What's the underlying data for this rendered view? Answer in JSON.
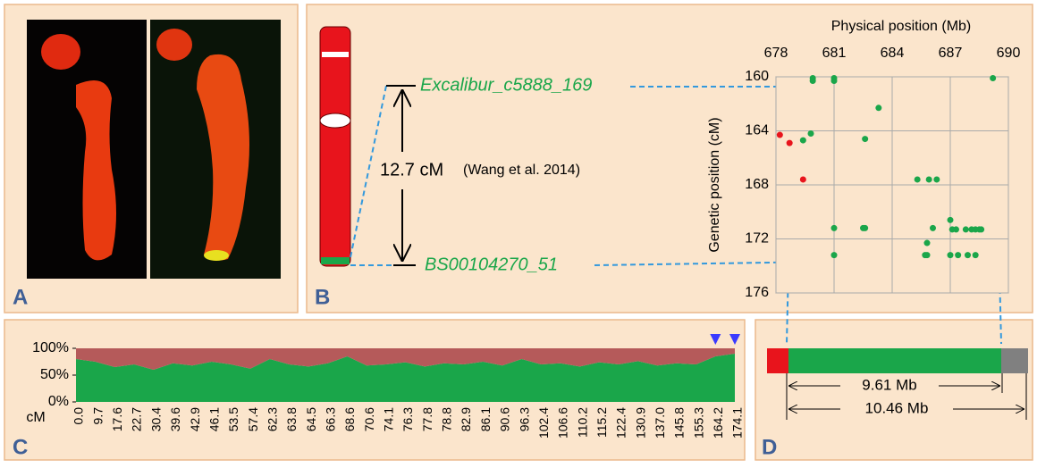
{
  "panel_labels": [
    "A",
    "B",
    "C",
    "D"
  ],
  "chromosome": {
    "marker_top": "Excalibur_c5888_169",
    "marker_bottom": "BS00104270_51",
    "distance": "12.7 cM",
    "citation": "(Wang et al. 2014)"
  },
  "physical_map": {
    "span_inner": "9.61 Mb",
    "span_outer": "10.46 Mb"
  },
  "chart_data": [
    {
      "type": "scatter",
      "x_label": "Physical position (Mb)",
      "y_label": "Genetic position (cM)",
      "xlim": [
        678,
        690
      ],
      "ylim": [
        160,
        176
      ],
      "y_inverted": true,
      "x_axis_top": true,
      "xticks": [
        678,
        681,
        684,
        687,
        690
      ],
      "yticks": [
        160,
        164,
        168,
        172,
        176
      ],
      "grid": true,
      "series": [
        {
          "color": "#e8141c",
          "x": [
            678.2,
            678.7,
            679.4
          ],
          "values": [
            164.3,
            164.9,
            167.6
          ]
        },
        {
          "color": "#1aa64a",
          "x": [
            679.9,
            679.9,
            681,
            681,
            683.3,
            679.8,
            679.4,
            682.6,
            685.3,
            685.9,
            686.3,
            687,
            686.1,
            687.1,
            687.3,
            687.8,
            688.1,
            688.3,
            688.5,
            688.6,
            681,
            682.5,
            682.6,
            685.8,
            685.7,
            685.8,
            687,
            687.4,
            687.9,
            688.3,
            681,
            689.2
          ],
          "values": [
            160.1,
            160.3,
            160.1,
            160.3,
            162.3,
            164.2,
            164.7,
            164.6,
            167.6,
            167.6,
            167.6,
            170.6,
            171.2,
            171.3,
            171.3,
            171.3,
            171.3,
            171.3,
            171.3,
            171.3,
            171.2,
            171.2,
            171.2,
            172.3,
            173.2,
            173.2,
            173.2,
            173.2,
            173.2,
            173.2,
            173.2,
            160.1
          ]
        }
      ]
    },
    {
      "type": "area",
      "x_label": "cM",
      "categories": [
        "0.0",
        "9.7",
        "17.6",
        "22.7",
        "30.4",
        "39.6",
        "42.9",
        "46.1",
        "53.5",
        "57.4",
        "62.3",
        "63.8",
        "64.5",
        "66.3",
        "68.6",
        "70.6",
        "74.1",
        "76.3",
        "77.8",
        "78.8",
        "82.9",
        "86.1",
        "90.6",
        "96.3",
        "102.4",
        "106.6",
        "110.2",
        "115.2",
        "122.4",
        "130.9",
        "137.0",
        "145.8",
        "155.3",
        "164.2",
        "174.1"
      ],
      "ylim": [
        0,
        100
      ],
      "yticks": [
        {
          "value": 0,
          "label": "0%"
        },
        {
          "value": 50,
          "label": "50%"
        },
        {
          "value": 100,
          "label": "100%"
        }
      ],
      "highlight_categories": [
        33,
        34
      ],
      "highlight_color": "#3a3aff",
      "series": [
        {
          "color": "#1aa64a",
          "values": [
            80,
            75,
            65,
            70,
            60,
            72,
            68,
            75,
            70,
            62,
            80,
            70,
            66,
            72,
            85,
            68,
            70,
            74,
            66,
            72,
            70,
            75,
            68,
            80,
            70,
            72,
            66,
            74,
            70,
            76,
            68,
            72,
            70,
            85,
            90
          ]
        },
        {
          "color": "#b55a5a",
          "values": [
            20,
            25,
            35,
            30,
            40,
            28,
            32,
            25,
            30,
            38,
            20,
            30,
            34,
            28,
            15,
            32,
            30,
            26,
            34,
            28,
            30,
            25,
            32,
            20,
            30,
            28,
            34,
            26,
            30,
            24,
            32,
            28,
            30,
            15,
            10
          ]
        }
      ]
    }
  ]
}
